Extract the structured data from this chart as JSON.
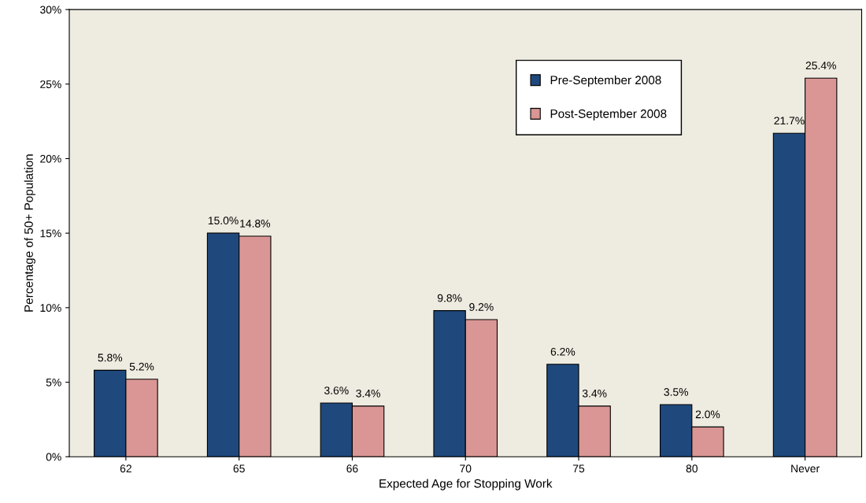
{
  "chart_data": {
    "type": "bar",
    "xlabel": "Expected Age for Stopping Work",
    "ylabel": "Percentage of 50+ Population",
    "categories": [
      "62",
      "65",
      "66",
      "70",
      "75",
      "80",
      "Never"
    ],
    "series": [
      {
        "name": "Pre-September 2008",
        "color": "#1f497d",
        "values": [
          5.8,
          15.0,
          3.6,
          9.8,
          6.2,
          3.5,
          21.7
        ],
        "value_labels": [
          "5.8%",
          "15.0%",
          "3.6%",
          "9.8%",
          "6.2%",
          "3.5%",
          "21.7%"
        ]
      },
      {
        "name": "Post-September 2008",
        "color": "#d99694",
        "values": [
          5.2,
          14.8,
          3.4,
          9.2,
          3.4,
          2.0,
          25.4
        ],
        "value_labels": [
          "5.2%",
          "14.8%",
          "3.4%",
          "9.2%",
          "3.4%",
          "2.0%",
          "25.4%"
        ]
      }
    ],
    "ylim": [
      0,
      30
    ],
    "yticks": [
      {
        "value": 0,
        "label": "0%"
      },
      {
        "value": 5,
        "label": "5%"
      },
      {
        "value": 10,
        "label": "10%"
      },
      {
        "value": 15,
        "label": "15%"
      },
      {
        "value": 20,
        "label": "20%"
      },
      {
        "value": 25,
        "label": "25%"
      },
      {
        "value": 30,
        "label": "30%"
      }
    ],
    "grid": false,
    "legend": "top right"
  }
}
